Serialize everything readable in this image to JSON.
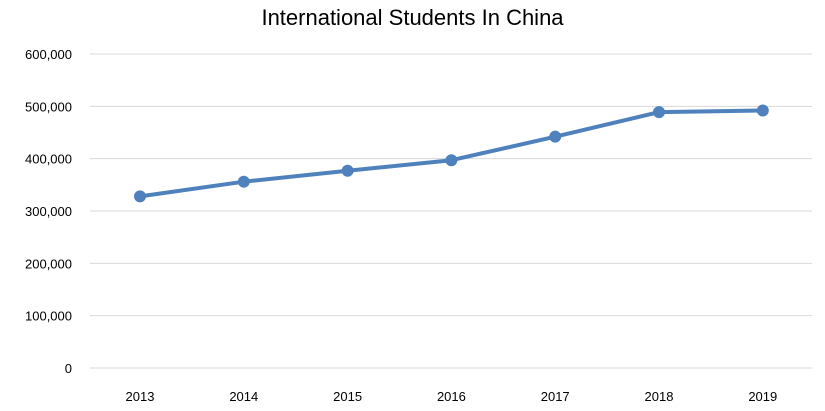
{
  "chart_data": {
    "type": "line",
    "title": "International Students In China",
    "xlabel": "",
    "ylabel": "",
    "categories": [
      "2013",
      "2014",
      "2015",
      "2016",
      "2017",
      "2018",
      "2019"
    ],
    "series": [
      {
        "values": [
          328000,
          356000,
          377000,
          397000,
          442000,
          489000,
          492000
        ]
      }
    ],
    "ylim": [
      0,
      600000
    ],
    "yticks": [
      0,
      100000,
      200000,
      300000,
      400000,
      500000,
      600000
    ],
    "ytick_labels": [
      "0",
      "100,000",
      "200,000",
      "300,000",
      "400,000",
      "500,000",
      "600,000"
    ],
    "grid": true,
    "legend": "none",
    "colors": {
      "line": "#4f81bd",
      "grid": "#d9d9d9"
    }
  }
}
